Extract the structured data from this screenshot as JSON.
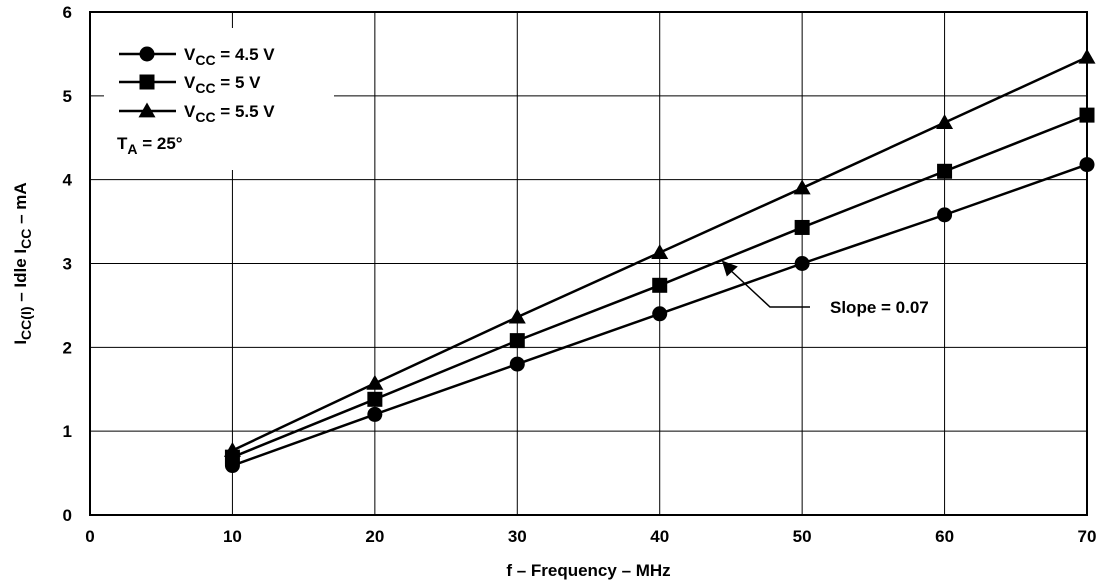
{
  "chart_data": {
    "type": "line",
    "xlabel": "f – Frequency – MHz",
    "ylabel": {
      "parts": [
        "I",
        "CC(I)",
        " – Idle I",
        "CC",
        " – mA"
      ]
    },
    "xlim": [
      0,
      70
    ],
    "ylim": [
      0,
      6
    ],
    "x_ticks": [
      "0",
      "10",
      "20",
      "30",
      "40",
      "50",
      "60",
      "70"
    ],
    "y_ticks": [
      "0",
      "1",
      "2",
      "3",
      "4",
      "5",
      "6"
    ],
    "grid": true,
    "legend_position": "top-left",
    "x": [
      10,
      20,
      30,
      40,
      50,
      60,
      70
    ],
    "series": [
      {
        "name": "VCC = 4.5 V",
        "label_parts": [
          "V",
          "CC",
          " = 4.5 V"
        ],
        "marker": "circle",
        "values": [
          0.59,
          1.2,
          1.8,
          2.4,
          3.0,
          3.58,
          4.18
        ]
      },
      {
        "name": "VCC = 5 V",
        "label_parts": [
          "V",
          "CC",
          " = 5 V"
        ],
        "marker": "square",
        "values": [
          0.69,
          1.38,
          2.08,
          2.74,
          3.43,
          4.1,
          4.77
        ]
      },
      {
        "name": "VCC = 5.5 V",
        "label_parts": [
          "V",
          "CC",
          " = 5.5 V"
        ],
        "marker": "triangle",
        "values": [
          0.77,
          1.57,
          2.36,
          3.13,
          3.9,
          4.68,
          5.46
        ]
      }
    ],
    "legend_note": {
      "parts": [
        "T",
        "A",
        " = 25°"
      ]
    },
    "annotation": {
      "text": "Slope = 0.07",
      "points_to": [
        44.5,
        3.0
      ]
    },
    "colors": {
      "line": "#000000",
      "grid": "#000000",
      "background": "#ffffff"
    }
  }
}
